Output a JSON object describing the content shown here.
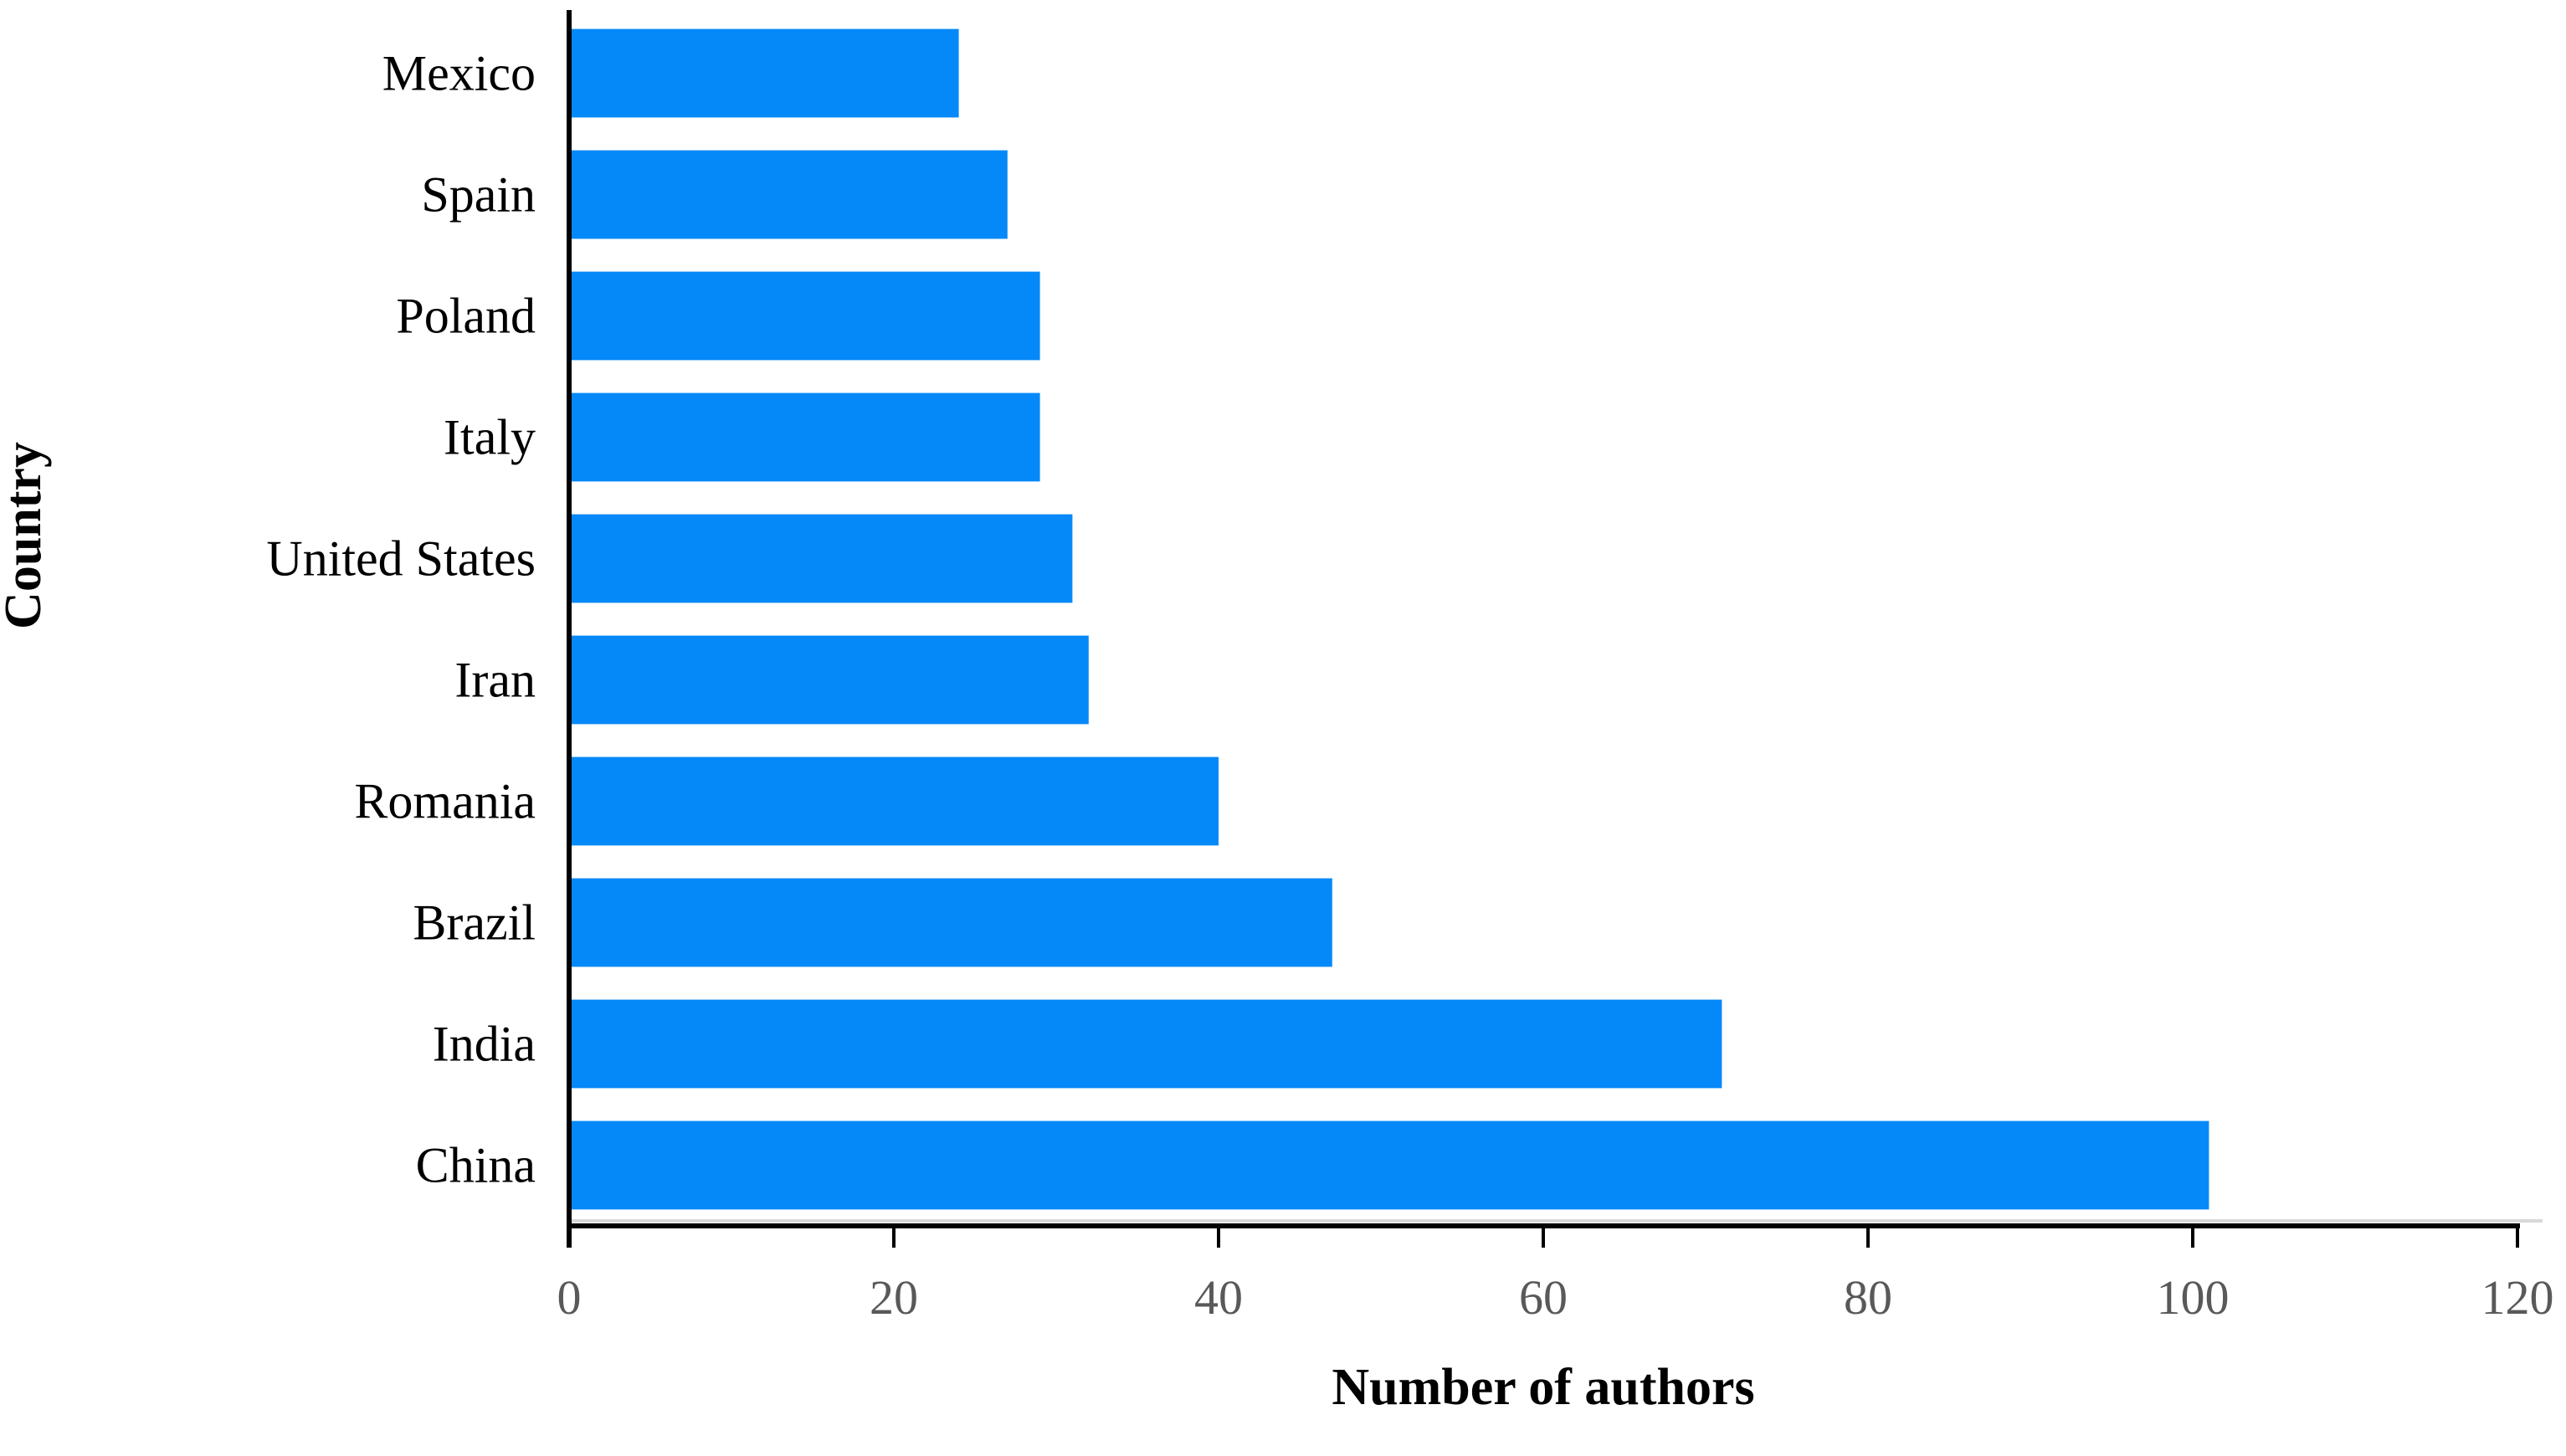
{
  "chart_data": {
    "type": "bar",
    "orientation": "horizontal",
    "title": "",
    "xlabel": "Number of authors",
    "ylabel": "Country",
    "categories": [
      "Mexico",
      "Spain",
      "Poland",
      "Italy",
      "United States",
      "Iran",
      "Romania",
      "Brazil",
      "India",
      "China"
    ],
    "values": [
      24,
      27,
      29,
      29,
      31,
      32,
      40,
      47,
      71,
      101
    ],
    "xlim": [
      0,
      120
    ],
    "xticks": [
      0,
      20,
      40,
      60,
      80,
      100,
      120
    ],
    "grid": "off",
    "legend_position": "none",
    "bar_color": "#0689f8",
    "tick_label_color": "#595959",
    "axis_line_color": "#000000",
    "axis_shadow_color": "#d9d9d9",
    "category_label_color": "#000000"
  }
}
